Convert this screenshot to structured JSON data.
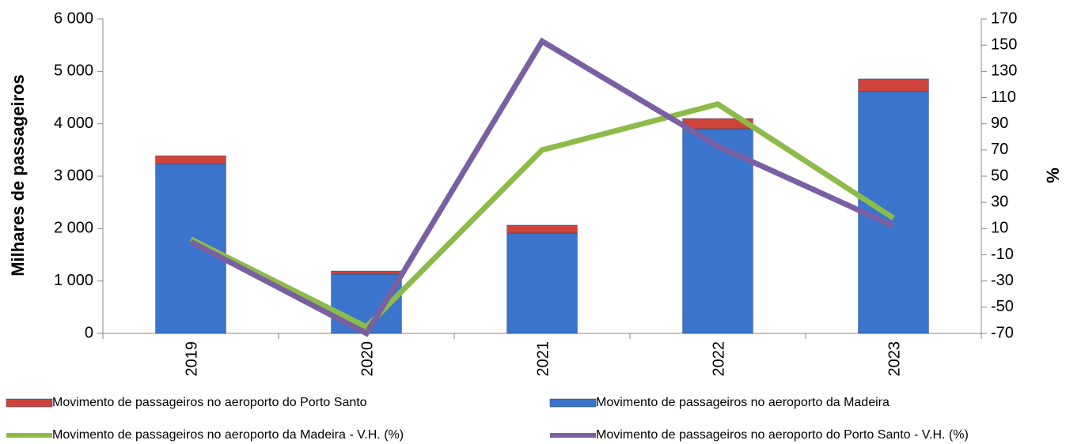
{
  "chart_data": {
    "type": "bar_line",
    "y_label": "Milhares de passageiros",
    "y2_label": "%",
    "categories": [
      "2019",
      "2020",
      "2021",
      "2022",
      "2023"
    ],
    "series": [
      {
        "name": "Movimento de passageiros no aeroporto da Madeira",
        "type": "bar",
        "color": "#3a74cc",
        "values": [
          3230,
          1130,
          1915,
          3905,
          4615
        ]
      },
      {
        "name": "Movimento de passageiros no aeroporto do Porto Santo",
        "type": "bar",
        "color": "#d0433a",
        "values": [
          160,
          60,
          150,
          195,
          240
        ]
      },
      {
        "name": "Movimento de passageiros no aeroporto da Madeira - V.H. (%)",
        "type": "line",
        "axis": "y2",
        "color": "#8dbb4a",
        "values": [
          2,
          -65,
          70,
          105,
          18
        ]
      },
      {
        "name": "Movimento de passageiros no aeroporto do Porto Santo - V.H. (%)",
        "type": "line",
        "axis": "y2",
        "color": "#7a5fa3",
        "values": [
          0,
          -70,
          153,
          73,
          12
        ]
      }
    ],
    "ylim": [
      0,
      6000
    ],
    "yticks": [
      0,
      {
        "value": 1000,
        "label": "1 000"
      },
      {
        "value": 2000,
        "label": "2 000"
      },
      {
        "value": 3000,
        "label": "3 000"
      },
      {
        "value": 4000,
        "label": "4 000"
      },
      {
        "value": 5000,
        "label": "5 000"
      },
      {
        "value": 6000,
        "label": "6 000"
      }
    ],
    "y2lim": [
      -70,
      170
    ],
    "y2ticks": [
      -70,
      -50,
      -30,
      -10,
      10,
      30,
      50,
      70,
      90,
      110,
      130,
      150,
      170
    ]
  }
}
